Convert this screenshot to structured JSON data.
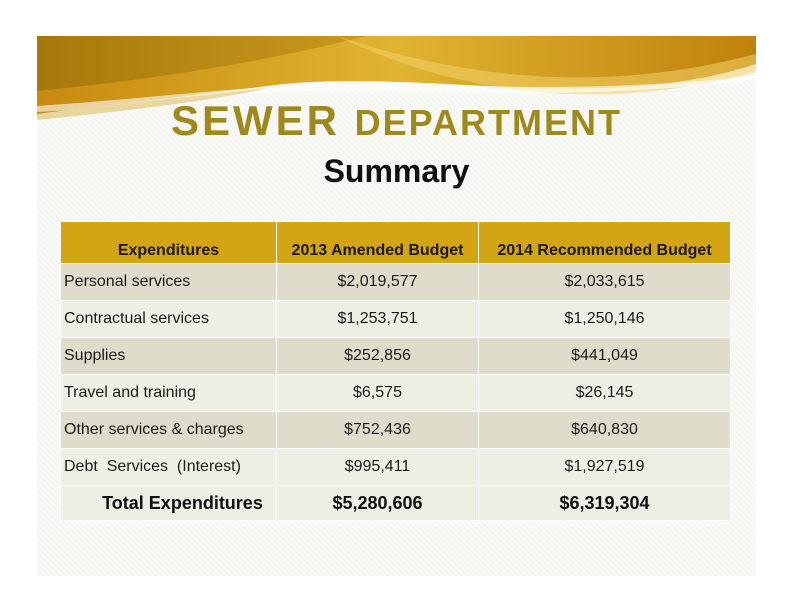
{
  "slide": {
    "title_part1": "SEWER",
    "title_part2": "DEPARTMENT",
    "subtitle": "Summary"
  },
  "colors": {
    "title_gold": "#9e8a1c",
    "header_gold": "#d3a414",
    "row_dark": "#e0dccb",
    "row_light": "#efeee5"
  },
  "table": {
    "headers": [
      "Expenditures",
      "2013 Amended Budget",
      "2014 Recommended Budget"
    ],
    "rows": [
      {
        "label": "Personal services",
        "budget_2013": "$2,019,577",
        "budget_2014": "$2,033,615"
      },
      {
        "label": "Contractual services",
        "budget_2013": "$1,253,751",
        "budget_2014": "$1,250,146"
      },
      {
        "label": "Supplies",
        "budget_2013": "$252,856",
        "budget_2014": "$441,049"
      },
      {
        "label": "Travel and training",
        "budget_2013": "$6,575",
        "budget_2014": "$26,145"
      },
      {
        "label": "Other services & charges",
        "budget_2013": "$752,436",
        "budget_2014": "$640,830"
      },
      {
        "label": "Debt  Services  (Interest)",
        "budget_2013": "$995,411",
        "budget_2014": "$1,927,519"
      }
    ],
    "total": {
      "label": "Total Expenditures",
      "budget_2013": "$5,280,606",
      "budget_2014": "$6,319,304"
    }
  }
}
